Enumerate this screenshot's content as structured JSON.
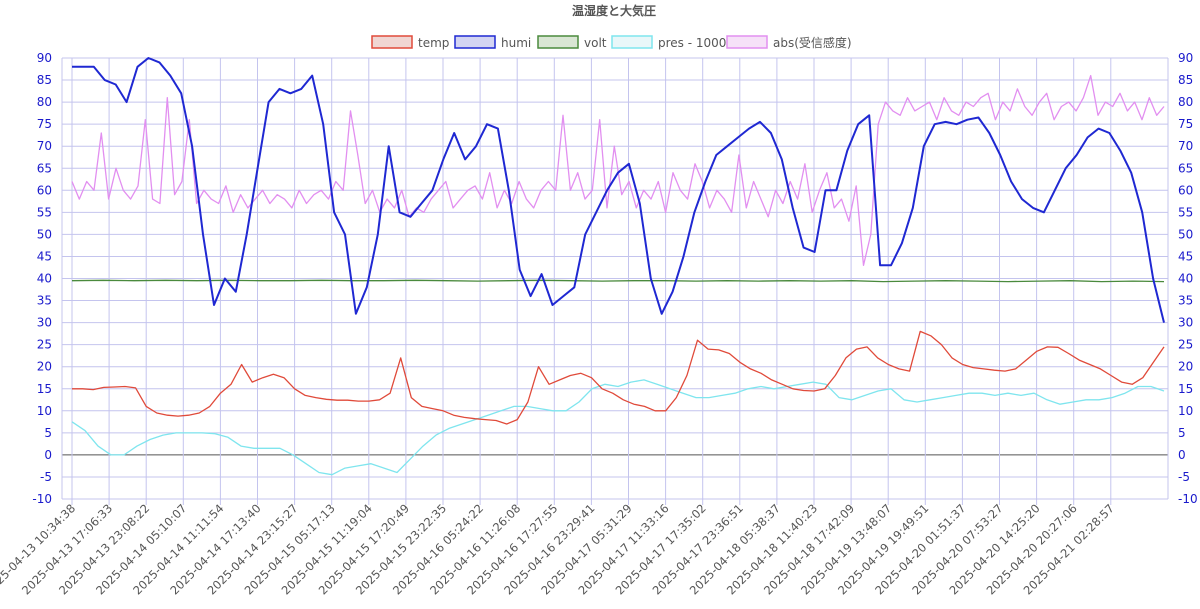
{
  "chart_data": {
    "type": "line",
    "title": "温湿度と大気圧",
    "legend_position": "top",
    "grid": true,
    "ylim": [
      -10,
      90
    ],
    "yticks": [
      90,
      85,
      80,
      75,
      70,
      65,
      60,
      55,
      50,
      45,
      40,
      35,
      30,
      25,
      20,
      15,
      10,
      5,
      0,
      -5,
      -10
    ],
    "x_tick_labels": [
      "2025-04-13 10:34:38",
      "2025-04-13 17:06:33",
      "2025-04-13 23:08:22",
      "2025-04-14 05:10:07",
      "2025-04-14 11:11:54",
      "2025-04-14 17:13:40",
      "2025-04-14 23:15:27",
      "2025-04-15 05:17:13",
      "2025-04-15 11:19:04",
      "2025-04-15 17:20:49",
      "2025-04-15 23:22:35",
      "2025-04-16 05:24:22",
      "2025-04-16 11:26:08",
      "2025-04-16 17:27:55",
      "2025-04-16 23:29:41",
      "2025-04-17 05:31:29",
      "2025-04-17 11:33:16",
      "2025-04-17 17:35:02",
      "2025-04-17 23:36:51",
      "2025-04-18 05:38:37",
      "2025-04-18 11:40:23",
      "2025-04-18 17:42:09",
      "2025-04-19 13:48:07",
      "2025-04-19 19:49:51",
      "2025-04-20 01:51:37",
      "2025-04-20 07:53:27",
      "2025-04-20 14:25:20",
      "2025-04-20 20:27:06",
      "2025-04-21 02:28:57"
    ],
    "series": [
      {
        "name": "temp",
        "color": "#e04a3a",
        "fill": "#f0d6d3",
        "values": [
          15,
          15,
          14.8,
          15.3,
          15.4,
          15.5,
          15.2,
          11,
          9.5,
          9,
          8.8,
          9,
          9.5,
          11,
          14,
          16,
          20.5,
          16.5,
          17.5,
          18.3,
          17.5,
          15,
          13.5,
          13,
          12.6,
          12.4,
          12.4,
          12.2,
          12.2,
          12.5,
          14,
          22,
          13,
          11,
          10.5,
          10,
          9,
          8.5,
          8.2,
          8,
          7.8,
          7,
          8,
          12,
          20,
          16,
          17,
          18,
          18.5,
          17.5,
          15,
          14,
          12.5,
          11.5,
          11,
          10,
          10,
          13,
          18,
          26,
          24,
          23.8,
          23,
          21,
          19.5,
          18.5,
          17,
          16,
          15,
          14.6,
          14.5,
          15,
          18,
          22,
          24,
          24.5,
          22,
          20.5,
          19.5,
          19,
          28,
          27,
          25,
          22,
          20.5,
          19.8,
          19.5,
          19.2,
          19,
          19.5,
          21.5,
          23.5,
          24.5,
          24.4,
          23,
          21.5,
          20.5,
          19.5,
          18,
          16.5,
          16,
          17.5,
          21,
          24.5
        ]
      },
      {
        "name": "humi",
        "color": "#1f28d2",
        "fill": "#d3d4f2",
        "values": [
          88,
          88,
          88,
          85,
          84,
          80,
          88,
          90,
          89,
          86,
          82,
          70,
          50,
          34,
          40,
          37,
          50,
          65,
          80,
          83,
          82,
          83,
          86,
          75,
          55,
          50,
          32,
          38,
          50,
          70,
          55,
          54,
          57,
          60,
          67,
          73,
          67,
          70,
          75,
          74,
          60,
          42,
          36,
          41,
          34,
          36,
          38,
          50,
          55,
          60,
          64,
          66,
          57,
          40,
          32,
          37,
          45,
          55,
          62,
          68,
          70,
          72,
          74,
          75.5,
          73,
          67,
          56,
          47,
          46,
          60,
          60,
          69,
          75,
          77,
          43,
          43,
          48,
          56,
          70,
          75,
          75.5,
          75,
          76,
          76.5,
          73,
          68,
          62,
          58,
          56,
          55,
          60,
          65,
          68,
          72,
          74,
          73,
          69,
          64,
          55,
          40,
          30
        ]
      },
      {
        "name": "volt",
        "color": "#4a8a3d",
        "fill": "#d9e6d4",
        "values": [
          39.5,
          39.6,
          39.5,
          39.6,
          39.5,
          39.6,
          39.5,
          39.5,
          39.6,
          39.5,
          39.5,
          39.6,
          39.5,
          39.4,
          39.5,
          39.6,
          39.5,
          39.4,
          39.5,
          39.5,
          39.4,
          39.5,
          39.4,
          39.5,
          39.4,
          39.5,
          39.3,
          39.4,
          39.5,
          39.4,
          39.3,
          39.4,
          39.5,
          39.3,
          39.4,
          39.3
        ]
      },
      {
        "name": "pres - 1000",
        "color": "#7fe5ee",
        "fill": "#e9f7f9",
        "values": [
          7.5,
          5.5,
          2,
          0,
          0,
          2,
          3.5,
          4.5,
          5,
          5,
          5,
          4.8,
          4,
          2,
          1.5,
          1.5,
          1.5,
          0,
          -2,
          -4,
          -4.5,
          -3,
          -2.5,
          -2,
          -3,
          -4,
          -1,
          2,
          4.5,
          6,
          7,
          8,
          9,
          10,
          11,
          11,
          10.5,
          10,
          10,
          12,
          15,
          16,
          15.5,
          16.5,
          17,
          16,
          15,
          14,
          13,
          13,
          13.5,
          14,
          15,
          15.5,
          15,
          15.5,
          16,
          16.5,
          16,
          13,
          12.5,
          13.5,
          14.5,
          15,
          12.5,
          12,
          12.5,
          13,
          13.5,
          14,
          14,
          13.5,
          14,
          13.5,
          14,
          12.5,
          11.5,
          12,
          12.5,
          12.5,
          13,
          14,
          15.5,
          15.5,
          14.5
        ]
      },
      {
        "name": "abs(受信感度)",
        "color": "#e28ff0",
        "fill": "#f6e1f8",
        "values": [
          62,
          58,
          62,
          60,
          73,
          58,
          65,
          60,
          58,
          61,
          76,
          58,
          57,
          81,
          59,
          62,
          76,
          57,
          60,
          58,
          57,
          61,
          55,
          59,
          56,
          58,
          60,
          57,
          59,
          58,
          56,
          60,
          57,
          59,
          60,
          58,
          62,
          60,
          78,
          68,
          57,
          60,
          55,
          58,
          56,
          60,
          54,
          56,
          55,
          58,
          60,
          62,
          56,
          58,
          60,
          61,
          58,
          64,
          56,
          60,
          57,
          62,
          58,
          56,
          60,
          62,
          60,
          77,
          60,
          64,
          58,
          60,
          76,
          56,
          70,
          59,
          62,
          56,
          60,
          58,
          62,
          55,
          64,
          60,
          58,
          66,
          62,
          56,
          60,
          58,
          55,
          68,
          56,
          62,
          58,
          54,
          60,
          57,
          62,
          58,
          66,
          55,
          60,
          64,
          56,
          58,
          53,
          61,
          43,
          50,
          75,
          80,
          78,
          77,
          81,
          78,
          79,
          80,
          76,
          81,
          78,
          77,
          80,
          79,
          81,
          82,
          76,
          80,
          78,
          83,
          79,
          77,
          80,
          82,
          76,
          79,
          80,
          78,
          81,
          86,
          77,
          80,
          79,
          82,
          78,
          80,
          76,
          81,
          77,
          79
        ]
      }
    ]
  }
}
